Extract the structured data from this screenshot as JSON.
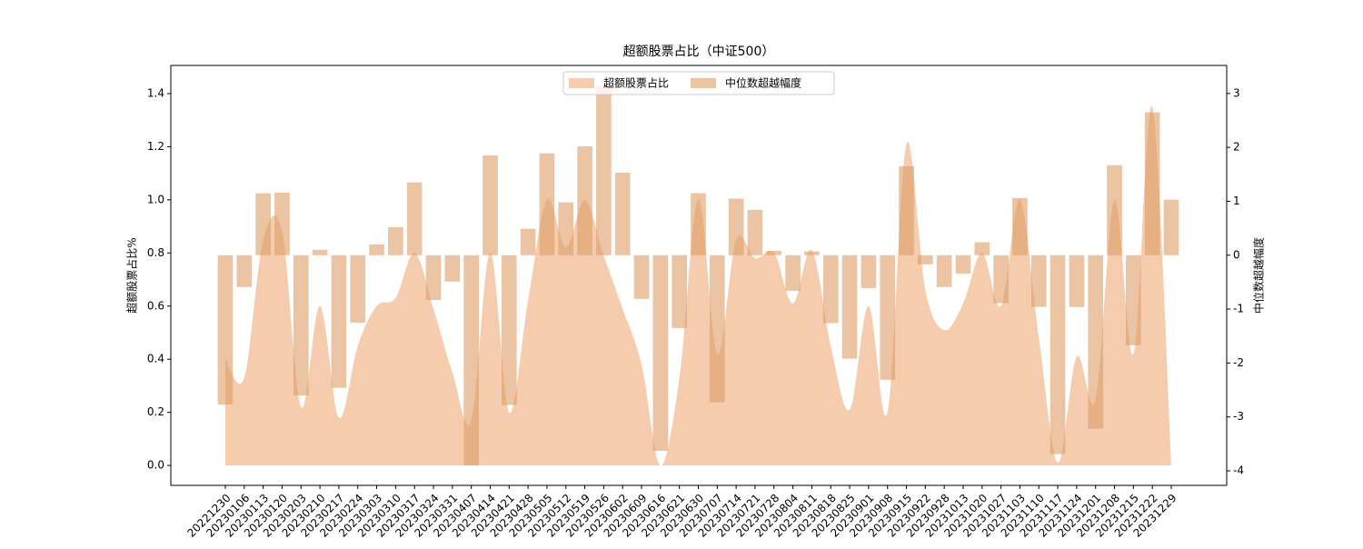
{
  "chart_data": {
    "type": "area-bar",
    "title": "超额股票占比（中证500）",
    "ylabel": "超额股票占比%",
    "y2label": "中位数超越幅度",
    "legend": "upper center",
    "categories": [
      "20221230",
      "20230106",
      "20230113",
      "20230120",
      "20230203",
      "20230210",
      "20230217",
      "20230224",
      "20230303",
      "20230310",
      "20230317",
      "20230324",
      "20230331",
      "20230407",
      "20230414",
      "20230421",
      "20230428",
      "20230505",
      "20230512",
      "20230519",
      "20230526",
      "20230602",
      "20230609",
      "20230616",
      "20230621",
      "20230630",
      "20230707",
      "20230714",
      "20230721",
      "20230728",
      "20230804",
      "20230811",
      "20230818",
      "20230825",
      "20230901",
      "20230908",
      "20230915",
      "20230922",
      "20230928",
      "20231013",
      "20231020",
      "20231027",
      "20231103",
      "20231110",
      "20231117",
      "20231124",
      "20231201",
      "20231208",
      "20231215",
      "20231222",
      "20231229"
    ],
    "series": [
      {
        "name": "超额股票占比",
        "type": "area",
        "color": "#f5cdae",
        "values": [
          0.4,
          0.33,
          0.85,
          0.88,
          0.22,
          0.6,
          0.18,
          0.45,
          0.6,
          0.63,
          0.8,
          0.59,
          0.35,
          0.17,
          0.8,
          0.2,
          0.62,
          1.0,
          0.82,
          1.0,
          0.79,
          0.59,
          0.38,
          0.0,
          0.33,
          1.0,
          0.42,
          0.85,
          0.78,
          0.8,
          0.61,
          0.81,
          0.45,
          0.21,
          0.6,
          0.2,
          1.21,
          0.66,
          0.51,
          0.61,
          0.8,
          0.6,
          1.0,
          0.48,
          0.01,
          0.41,
          0.25,
          1.0,
          0.42,
          1.35,
          0.0
        ]
      },
      {
        "name": "中位数超越幅度",
        "type": "bar",
        "axis": "y2",
        "color": "#dc9c66",
        "values": [
          -2.77,
          -0.59,
          1.15,
          1.16,
          -2.6,
          0.1,
          -2.46,
          -1.25,
          0.2,
          0.52,
          1.35,
          -0.83,
          -0.49,
          -3.9,
          1.85,
          -2.78,
          0.49,
          1.89,
          0.98,
          2.02,
          3.15,
          1.53,
          -0.81,
          -3.63,
          -1.35,
          1.15,
          -2.73,
          1.05,
          0.84,
          0.08,
          -0.66,
          0.07,
          -1.26,
          -1.92,
          -0.61,
          -2.31,
          1.65,
          -0.17,
          -0.59,
          -0.34,
          0.24,
          -0.89,
          1.06,
          -0.96,
          -3.69,
          -0.96,
          -3.22,
          1.67,
          -1.67,
          2.65,
          1.03
        ]
      }
    ],
    "ylim": [
      -0.075,
      1.506
    ],
    "yticks": [
      {
        "value": 0,
        "label": "0.0"
      },
      {
        "value": 0.2,
        "label": "0.2"
      },
      {
        "value": 0.4,
        "label": "0.4"
      },
      {
        "value": 0.6,
        "label": "0.6"
      },
      {
        "value": 0.8,
        "label": "0.8"
      },
      {
        "value": 1.0,
        "label": "1.0"
      },
      {
        "value": 1.2,
        "label": "1.2"
      },
      {
        "value": 1.4,
        "label": "1.4"
      }
    ],
    "y2lim": [
      -4.27,
      3.52
    ],
    "y2ticks": [
      -4,
      -3,
      -2,
      -1,
      0,
      1,
      2,
      3
    ]
  }
}
